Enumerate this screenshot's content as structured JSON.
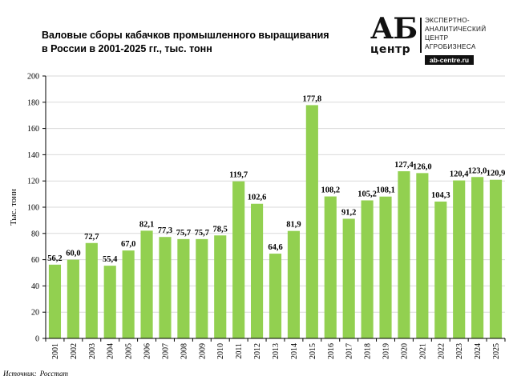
{
  "header": {
    "title_line1": "Валовые сборы кабачков промышленного выращивания",
    "title_line2": "в России в 2001-2025 гг., тыс. тонн"
  },
  "logo": {
    "brand": "АБ",
    "brand_sub": "центр",
    "line1": "ЭКСПЕРТНО-",
    "line2": "АНАЛИТИЧЕСКИЙ",
    "line3": "ЦЕНТР",
    "line4": "АГРОБИЗНЕСА",
    "url": "ab-centre.ru"
  },
  "footer": {
    "source_label": "Источник:",
    "source_value": "Росстат"
  },
  "colors": {
    "bar": "#92d050",
    "grid": "#d9d9d9",
    "axis": "#000000"
  },
  "chart_data": {
    "type": "bar",
    "title": "Валовые сборы кабачков промышленного выращивания в России в 2001-2025 гг., тыс. тонн",
    "xlabel": "",
    "ylabel": "Тыс. тонн",
    "ylim": [
      0,
      200
    ],
    "yticks": [
      "0",
      "20",
      "40",
      "60",
      "80",
      "100",
      "120",
      "140",
      "160",
      "180",
      "200"
    ],
    "grid": true,
    "categories": [
      "2001",
      "2002",
      "2003",
      "2004",
      "2005",
      "2006",
      "2007",
      "2008",
      "2009",
      "2010",
      "2011",
      "2012",
      "2013",
      "2014",
      "2015",
      "2016",
      "2017",
      "2018",
      "2019",
      "2020",
      "2021",
      "2022",
      "2023",
      "2024",
      "2025"
    ],
    "values": [
      56.2,
      60.0,
      72.7,
      55.4,
      67.0,
      82.1,
      77.3,
      75.7,
      75.7,
      78.5,
      119.7,
      102.6,
      64.6,
      81.9,
      177.8,
      108.2,
      91.2,
      105.2,
      108.1,
      127.4,
      126.0,
      104.3,
      120.4,
      123.0,
      120.9
    ],
    "labels": [
      "56,2",
      "60,0",
      "72,7",
      "55,4",
      "67,0",
      "82,1",
      "77,3",
      "75,7",
      "75,7",
      "78,5",
      "119,7",
      "102,6",
      "64,6",
      "81,9",
      "177,8",
      "108,2",
      "91,2",
      "105,2",
      "108,1",
      "127,4",
      "126,0",
      "104,3",
      "120,4",
      "123,0",
      "120,9"
    ]
  }
}
